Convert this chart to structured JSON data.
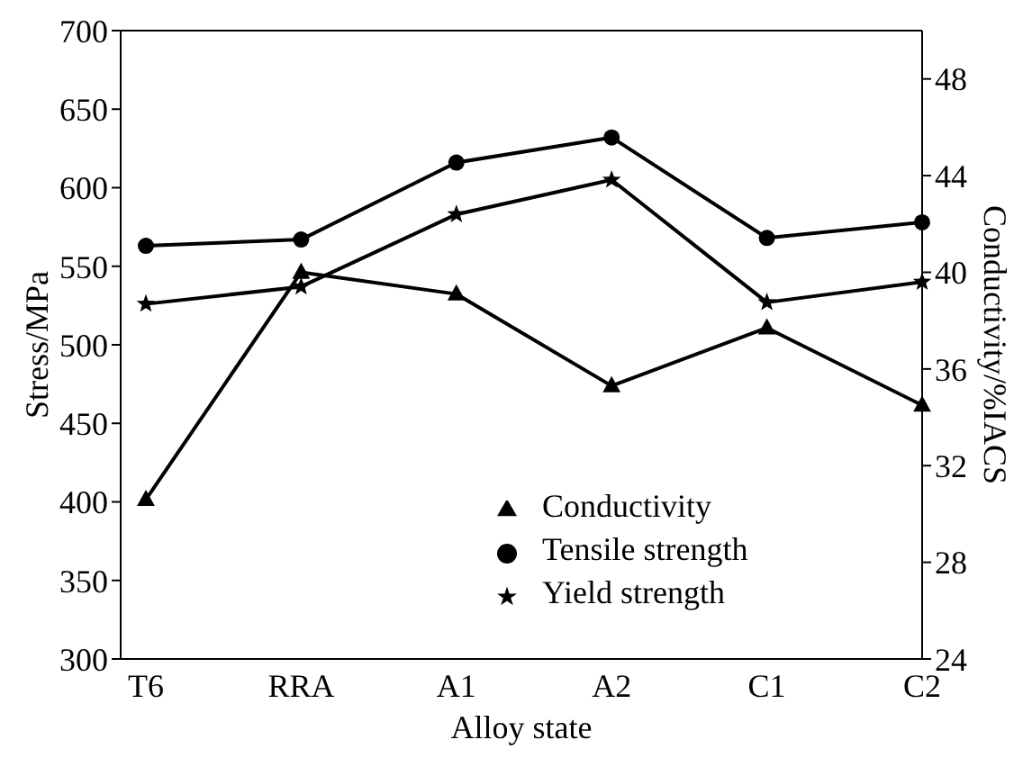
{
  "chart_data": {
    "type": "line",
    "xlabel": "Alloy state",
    "ylabel": "Stress/MPa",
    "y2label": "Conductivity/%IACS",
    "categories": [
      "T6",
      "RRA",
      "A1",
      "A2",
      "C1",
      "C2"
    ],
    "series": [
      {
        "name": "Tensile strength",
        "color": "#000000",
        "marker": "circle",
        "values": [
          563,
          567,
          616,
          632,
          568,
          578
        ]
      },
      {
        "name": "Yield strength",
        "color": "#000000",
        "marker": "star",
        "values": [
          526,
          537,
          583,
          605,
          527,
          540
        ]
      },
      {
        "name": "Conductivity",
        "color": "#000000",
        "marker": "triangle",
        "axis": "y2",
        "values": [
          30.6,
          40.0,
          39.1,
          35.3,
          37.7,
          34.5
        ]
      }
    ],
    "ylim": [
      300,
      700
    ],
    "yticks": [
      300,
      350,
      400,
      450,
      500,
      550,
      600,
      650,
      700
    ],
    "y2lim": [
      24,
      50
    ],
    "y2ticks": [
      24,
      28,
      32,
      36,
      40,
      44,
      48
    ],
    "grid": false,
    "legend": "bottom right"
  }
}
